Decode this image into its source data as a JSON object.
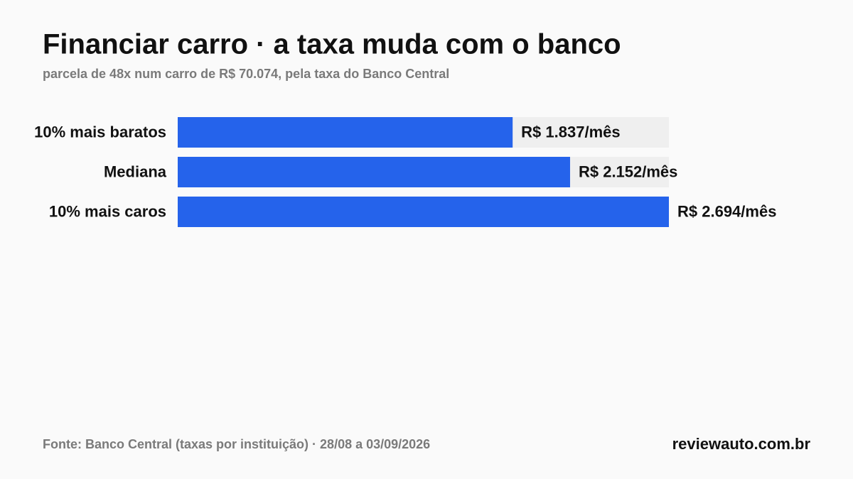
{
  "chart_data": {
    "type": "bar",
    "orientation": "horizontal",
    "title": "Financiar carro · a taxa muda com o banco",
    "subtitle": "parcela de 48x num carro de R$ 70.074, pela taxa do Banco Central",
    "categories": [
      "10% mais baratos",
      "Mediana",
      "10% mais caros"
    ],
    "values": [
      1837,
      2152,
      2694
    ],
    "value_labels": [
      "R$ 1.837/mês",
      "R$ 2.152/mês",
      "R$ 2.694/mês"
    ],
    "color": "#2563eb",
    "source": "Fonte: Banco Central (taxas por instituição) · 28/08 a 03/09/2026",
    "brand": "reviewauto.com.br"
  }
}
